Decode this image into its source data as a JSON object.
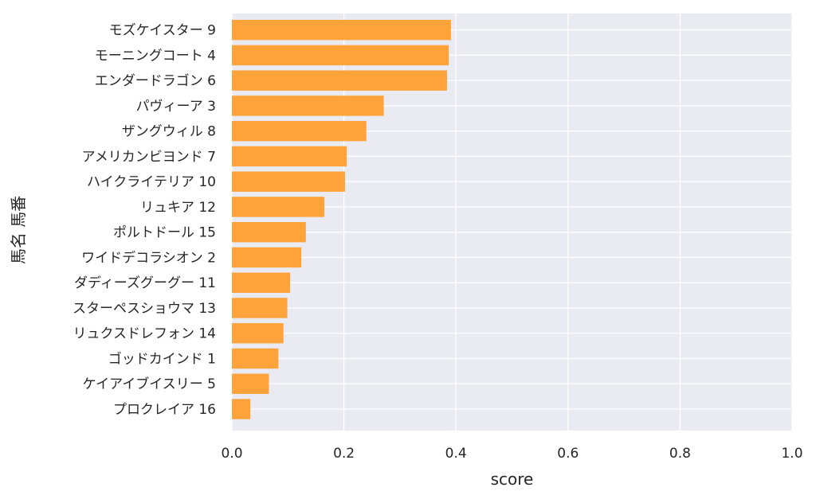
{
  "chart_data": {
    "type": "bar",
    "orientation": "horizontal",
    "title": "",
    "xlabel": "score",
    "ylabel": "馬名 馬番",
    "xlim": [
      0,
      1.0
    ],
    "xticks": [
      "0.0",
      "0.2",
      "0.4",
      "0.6",
      "0.8",
      "1.0"
    ],
    "grid": true,
    "bar_color": "#ff9f2e",
    "background_color": "#eaeaf2",
    "categories": [
      "モズケイスター 9",
      "モーニングコート 4",
      "エンダードラゴン 6",
      "パヴィーア 3",
      "ザングウィル 8",
      "アメリカンビヨンド 7",
      "ハイクライテリア 10",
      "リュキア 12",
      "ポルトドール 15",
      "ワイドデコラシオン 2",
      "ダディーズグーグー 11",
      "スターペスショウマ 13",
      "リュクスドレフォン 14",
      "ゴッドカインド 1",
      "ケイアイブイスリー 5",
      "プロクレイア 16"
    ],
    "values": [
      0.391,
      0.387,
      0.384,
      0.271,
      0.24,
      0.205,
      0.202,
      0.165,
      0.132,
      0.124,
      0.104,
      0.099,
      0.092,
      0.083,
      0.066,
      0.033
    ]
  }
}
